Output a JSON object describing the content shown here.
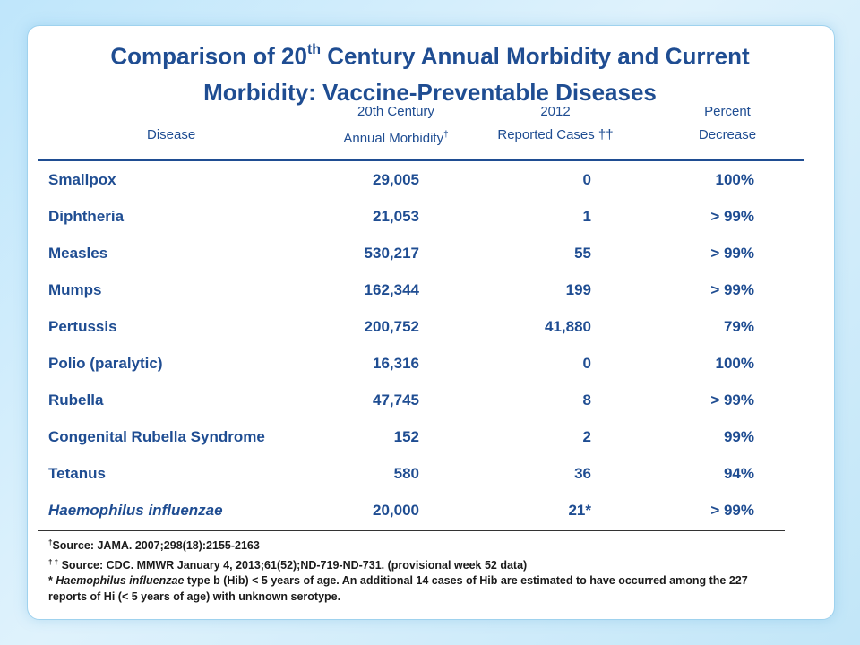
{
  "title": {
    "line1_pre": "Comparison of 20",
    "line1_sup": "th",
    "line1_post": " Century Annual Morbidity and Current",
    "line2": "Morbidity: Vaccine-Preventable Diseases"
  },
  "header": {
    "disease": "Disease",
    "century_l1": "20th Century",
    "century_l2": "Annual Morbidity",
    "century_mark": "†",
    "cases_l1": "2012",
    "cases_l2": "Reported Cases ††",
    "pct_l1": "Percent",
    "pct_l2": "Decrease"
  },
  "rows": [
    {
      "disease": "Smallpox",
      "century": "29,005",
      "cases": "0",
      "decrease": "100%"
    },
    {
      "disease": "Diphtheria",
      "century": "21,053",
      "cases": "1",
      "decrease": "> 99%"
    },
    {
      "disease": "Measles",
      "century": "530,217",
      "cases": "55",
      "decrease": "> 99%"
    },
    {
      "disease": "Mumps",
      "century": "162,344",
      "cases": "199",
      "decrease": "> 99%"
    },
    {
      "disease": "Pertussis",
      "century": "200,752",
      "cases": "41,880",
      "decrease": "79%"
    },
    {
      "disease": "Polio (paralytic)",
      "century": "16,316",
      "cases": "0",
      "decrease": "100%"
    },
    {
      "disease": "Rubella",
      "century": "47,745",
      "cases": "8",
      "decrease": "> 99%"
    },
    {
      "disease": "Congenital Rubella Syndrome",
      "century": "152",
      "cases": "2",
      "decrease": "99%"
    },
    {
      "disease": "Tetanus",
      "century": "580",
      "cases": "36",
      "decrease": "94%"
    },
    {
      "disease": "Haemophilus influenzae",
      "century": "20,000",
      "cases": "21*",
      "decrease": "> 99%",
      "italic": true
    }
  ],
  "footnotes": {
    "n1_mark": "†",
    "n1_text": "Source:  JAMA. 2007;298(18):2155-2163",
    "n2_mark": "† †",
    "n2_text": " Source:  CDC.  MMWR January  4, 2013;61(52);ND-719-ND-731.  (provisional week 52 data)",
    "n3_pre": "* ",
    "n3_ital": "Haemophilus influenzae",
    "n3_post": "  type b (Hib) < 5 years of age.   An additional 14  cases of Hib are estimated to have occurred among the 227 reports of Hi (< 5 years of age) with unknown serotype."
  }
}
